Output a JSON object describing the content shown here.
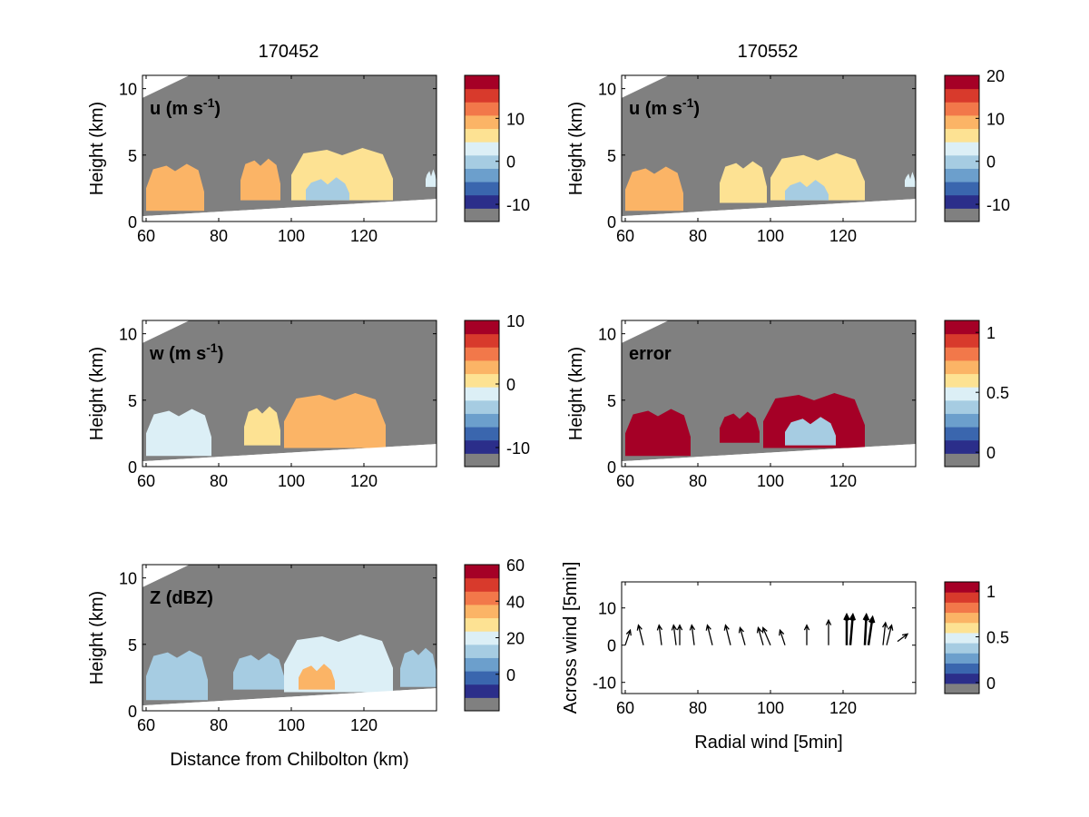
{
  "figure": {
    "col_titles": [
      "170452",
      "170552"
    ],
    "background_color": "#ffffff",
    "missing_color": "#808080"
  },
  "colormap": [
    "#2b2e8a",
    "#3a66ae",
    "#6c9fcc",
    "#a6cce2",
    "#dceff6",
    "#fde293",
    "#fbb466",
    "#f2784a",
    "#d83a2c",
    "#a50026"
  ],
  "chart_data": [
    {
      "id": "u-170452",
      "type": "heatmap",
      "field_label": "u (m s",
      "field_sup": "-1",
      "field_close": ")",
      "ylabel": "Height (km)",
      "xlabel": "",
      "xlim": [
        59,
        140
      ],
      "ylim": [
        0,
        11
      ],
      "xticks": [
        "60",
        "80",
        "100",
        "120"
      ],
      "yticks": [
        "0",
        "5",
        "10"
      ],
      "colorbar": {
        "ticks": [
          "-10",
          "0",
          "10"
        ],
        "range": [
          -14,
          20
        ],
        "missing_bin": true
      },
      "echoes": [
        {
          "x": [
            60,
            76
          ],
          "base": 0.8,
          "top": 4.2,
          "value": 8
        },
        {
          "x": [
            86,
            97
          ],
          "base": 1.6,
          "top": 4.6,
          "value": 7
        },
        {
          "x": [
            100,
            128
          ],
          "base": 1.6,
          "top": 5.4,
          "value": 6
        },
        {
          "x": [
            104,
            116
          ],
          "base": 1.6,
          "top": 3.2,
          "value": -2
        },
        {
          "x": [
            137,
            140
          ],
          "base": 2.6,
          "top": 3.8,
          "value": 2
        }
      ]
    },
    {
      "id": "u-170552",
      "type": "heatmap",
      "field_label": "u (m s",
      "field_sup": "-1",
      "field_close": ")",
      "ylabel": "Height (km)",
      "xlabel": "",
      "xlim": [
        59,
        140
      ],
      "ylim": [
        0,
        11
      ],
      "xticks": [
        "60",
        "80",
        "100",
        "120"
      ],
      "yticks": [
        "0",
        "5",
        "10"
      ],
      "colorbar": {
        "ticks": [
          "-10",
          "0",
          "10",
          "20"
        ],
        "range": [
          -14,
          20
        ],
        "missing_bin": true
      },
      "echoes": [
        {
          "x": [
            60,
            76
          ],
          "base": 0.8,
          "top": 4.0,
          "value": 9
        },
        {
          "x": [
            86,
            99
          ],
          "base": 1.4,
          "top": 4.4,
          "value": 6
        },
        {
          "x": [
            100,
            126
          ],
          "base": 1.6,
          "top": 5.0,
          "value": 6
        },
        {
          "x": [
            104,
            116
          ],
          "base": 1.6,
          "top": 3.0,
          "value": -3
        },
        {
          "x": [
            137,
            140
          ],
          "base": 2.6,
          "top": 3.6,
          "value": 2
        }
      ]
    },
    {
      "id": "w-170452",
      "type": "heatmap",
      "field_label": "w (m s",
      "field_sup": "-1",
      "field_close": ")",
      "ylabel": "Height (km)",
      "xlabel": "",
      "xlim": [
        59,
        140
      ],
      "ylim": [
        0,
        11
      ],
      "xticks": [
        "60",
        "80",
        "100",
        "120"
      ],
      "yticks": [
        "0",
        "5",
        "10"
      ],
      "colorbar": {
        "ticks": [
          "-10",
          "0",
          "10"
        ],
        "range": [
          -13,
          10
        ],
        "missing_bin": true
      },
      "echoes": [
        {
          "x": [
            60,
            78
          ],
          "base": 0.8,
          "top": 4.2,
          "value": -2
        },
        {
          "x": [
            87,
            97
          ],
          "base": 1.6,
          "top": 4.4,
          "value": -1
        },
        {
          "x": [
            98,
            126
          ],
          "base": 1.4,
          "top": 5.4,
          "value": 1
        },
        {
          "x": [
            104,
            116
          ],
          "base": 1.6,
          "top": 3.4,
          "value": 2
        }
      ]
    },
    {
      "id": "error-170552",
      "type": "heatmap",
      "field_label": "error",
      "field_sup": "",
      "field_close": "",
      "ylabel": "Height (km)",
      "xlabel": "",
      "xlim": [
        59,
        140
      ],
      "ylim": [
        0,
        11
      ],
      "xticks": [
        "60",
        "80",
        "100",
        "120"
      ],
      "yticks": [
        "0",
        "5",
        "10"
      ],
      "colorbar": {
        "ticks": [
          "0",
          "0.5",
          "1"
        ],
        "range": [
          -0.12,
          1.1
        ],
        "missing_bin": true
      },
      "echoes": [
        {
          "x": [
            60,
            78
          ],
          "base": 0.8,
          "top": 4.2,
          "value": 1.05
        },
        {
          "x": [
            86,
            97
          ],
          "base": 1.8,
          "top": 4.0,
          "value": 1.05
        },
        {
          "x": [
            98,
            126
          ],
          "base": 1.4,
          "top": 5.4,
          "value": 1.05
        },
        {
          "x": [
            104,
            118
          ],
          "base": 1.6,
          "top": 3.6,
          "value": 0.3
        }
      ]
    },
    {
      "id": "z-170452",
      "type": "heatmap",
      "field_label": "Z (dBZ)",
      "field_sup": "",
      "field_close": "",
      "ylabel": "Height (km)",
      "xlabel": "Distance from Chilbolton (km)",
      "xlim": [
        59,
        140
      ],
      "ylim": [
        0,
        11
      ],
      "xticks": [
        "60",
        "80",
        "100",
        "120"
      ],
      "yticks": [
        "0",
        "5",
        "10"
      ],
      "colorbar": {
        "ticks": [
          "0",
          "20",
          "40",
          "60"
        ],
        "range": [
          -20,
          60
        ],
        "missing_bin": true
      },
      "echoes": [
        {
          "x": [
            60,
            77
          ],
          "base": 0.8,
          "top": 4.4,
          "value": 5
        },
        {
          "x": [
            84,
            98
          ],
          "base": 1.6,
          "top": 4.2,
          "value": 10
        },
        {
          "x": [
            98,
            128
          ],
          "base": 1.4,
          "top": 5.6,
          "value": 12
        },
        {
          "x": [
            102,
            112
          ],
          "base": 1.6,
          "top": 3.4,
          "value": 30
        },
        {
          "x": [
            130,
            140
          ],
          "base": 1.8,
          "top": 4.6,
          "value": 8
        }
      ]
    },
    {
      "id": "wind-vectors",
      "type": "scatter",
      "field_label": "",
      "field_sup": "",
      "field_close": "",
      "ylabel": "Across wind [5min]",
      "xlabel": "Radial wind [5min]",
      "xlim": [
        59,
        140
      ],
      "ylim": [
        -13,
        17
      ],
      "xticks": [
        "60",
        "80",
        "100",
        "120"
      ],
      "yticks": [
        "-10",
        "0",
        "10"
      ],
      "colorbar": {
        "ticks": [
          "0",
          "0.5",
          "1"
        ],
        "range": [
          -0.12,
          1.1
        ],
        "missing_bin": true
      },
      "vectors": [
        {
          "x": 60,
          "y": 0,
          "u": 1,
          "v": 3
        },
        {
          "x": 65,
          "y": 0,
          "u": -1,
          "v": 4
        },
        {
          "x": 70,
          "y": 0,
          "u": -0.5,
          "v": 4
        },
        {
          "x": 74,
          "y": 0,
          "u": -0.5,
          "v": 4
        },
        {
          "x": 75,
          "y": 0,
          "u": 0,
          "v": 4
        },
        {
          "x": 79,
          "y": 0,
          "u": -0.5,
          "v": 4
        },
        {
          "x": 84,
          "y": 0,
          "u": -1,
          "v": 4
        },
        {
          "x": 89,
          "y": 0,
          "u": -1,
          "v": 4
        },
        {
          "x": 93,
          "y": 0,
          "u": -1,
          "v": 3.5
        },
        {
          "x": 98,
          "y": 0,
          "u": -1,
          "v": 3.5
        },
        {
          "x": 100,
          "y": 0,
          "u": -1.5,
          "v": 3.5
        },
        {
          "x": 104,
          "y": 0,
          "u": -1,
          "v": 3
        },
        {
          "x": 110,
          "y": 0,
          "u": 0,
          "v": 4
        },
        {
          "x": 116,
          "y": 0,
          "u": 0,
          "v": 5
        },
        {
          "x": 121,
          "y": 0,
          "u": 0,
          "v": 6
        },
        {
          "x": 122,
          "y": 0,
          "u": 0.5,
          "v": 6
        },
        {
          "x": 126,
          "y": 0,
          "u": 0.3,
          "v": 6
        },
        {
          "x": 127,
          "y": 0,
          "u": 0.8,
          "v": 5.5
        },
        {
          "x": 131,
          "y": 0,
          "u": 0.5,
          "v": 4.5
        },
        {
          "x": 132,
          "y": 0,
          "u": 1,
          "v": 4
        },
        {
          "x": 135,
          "y": 1,
          "u": 2,
          "v": 1.5
        }
      ]
    }
  ]
}
